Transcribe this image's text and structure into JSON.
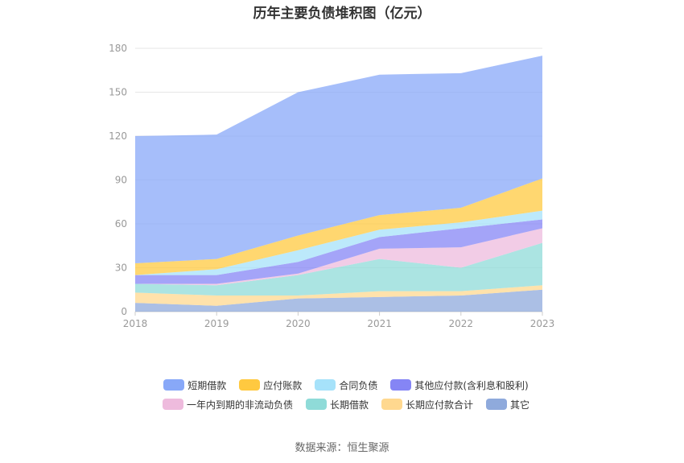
{
  "title": "历年主要负债堆积图（亿元）",
  "source": "数据来源：恒生聚源",
  "chart_data": {
    "type": "area",
    "stacked": true,
    "title": "历年主要负债堆积图（亿元）",
    "x": [
      "2018",
      "2019",
      "2020",
      "2021",
      "2022",
      "2023"
    ],
    "ylim": [
      0,
      180
    ],
    "yticks": [
      0,
      30,
      60,
      90,
      120,
      150,
      180
    ],
    "grid": true,
    "legend_position": "bottom",
    "series": [
      {
        "name": "其它",
        "color": "#8faadc",
        "values": [
          6,
          4,
          9,
          10,
          11,
          15
        ]
      },
      {
        "name": "长期应付款合计",
        "color": "#ffd88f",
        "values": [
          7,
          7,
          2,
          4,
          3,
          3
        ]
      },
      {
        "name": "长期借款",
        "color": "#8fdbd8",
        "values": [
          6,
          7,
          14,
          22,
          16,
          29
        ]
      },
      {
        "name": "一年内到期的非流动负债",
        "color": "#eebbdd",
        "values": [
          0,
          1,
          1,
          7,
          14,
          10
        ]
      },
      {
        "name": "其他应付款(含利息和股利)",
        "color": "#8585f5",
        "values": [
          6,
          6,
          8,
          8,
          13,
          6
        ]
      },
      {
        "name": "合同负债",
        "color": "#a6e2fa",
        "values": [
          0,
          4,
          8,
          5,
          4,
          6
        ]
      },
      {
        "name": "应付账款",
        "color": "#ffc940",
        "values": [
          8,
          7,
          10,
          10,
          10,
          22
        ]
      },
      {
        "name": "短期借款",
        "color": "#88a8f8",
        "values": [
          87,
          85,
          98,
          96,
          92,
          84
        ]
      }
    ]
  }
}
